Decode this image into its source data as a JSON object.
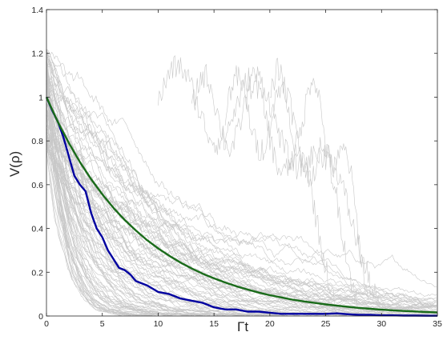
{
  "chart_data": {
    "type": "line",
    "title": "",
    "xlabel": "Γt",
    "ylabel": "V(ρ)",
    "xlim": [
      0,
      35
    ],
    "ylim": [
      0,
      1.4
    ],
    "x_ticks": [
      0,
      5,
      10,
      15,
      20,
      25,
      30,
      35
    ],
    "x_tick_labels": [
      "0",
      "5",
      "10",
      "15",
      "20",
      "25",
      "30",
      "35"
    ],
    "y_ticks": [
      0,
      0.2,
      0.4,
      0.6,
      0.8,
      1,
      1.2,
      1.4
    ],
    "y_tick_labels": [
      "0",
      "0.2",
      "0.4",
      "0.6",
      "0.8",
      "1",
      "1.2",
      "1.4"
    ],
    "grid": false,
    "series": [
      {
        "color": "#0000a0",
        "x": [
          0,
          0.5,
          1,
          1.5,
          2,
          2.5,
          3,
          3.5,
          4,
          4.5,
          5,
          5.5,
          6,
          6.5,
          7,
          7.5,
          8,
          9,
          10,
          11,
          12,
          13,
          14,
          15,
          16,
          17,
          18,
          19,
          20,
          21,
          22,
          23,
          24,
          25,
          26,
          27,
          28,
          29,
          30,
          31,
          32,
          33,
          34,
          35
        ],
        "y": [
          1.0,
          0.94,
          0.89,
          0.82,
          0.73,
          0.64,
          0.6,
          0.57,
          0.47,
          0.4,
          0.36,
          0.3,
          0.26,
          0.22,
          0.21,
          0.19,
          0.16,
          0.14,
          0.11,
          0.1,
          0.08,
          0.07,
          0.06,
          0.04,
          0.03,
          0.03,
          0.02,
          0.02,
          0.015,
          0.01,
          0.01,
          0.01,
          0.01,
          0.01,
          0.012,
          0.008,
          0.005,
          0.005,
          0.003,
          0.003,
          0.002,
          0.002,
          0.001,
          0.001
        ]
      },
      {
        "color": "#1a6b1a",
        "x": [
          0,
          1,
          2,
          3,
          4,
          5,
          6,
          7,
          8,
          9,
          10,
          11,
          12,
          13,
          14,
          15,
          16,
          17,
          18,
          19,
          20,
          21,
          22,
          23,
          24,
          25,
          26,
          27,
          28,
          29,
          30,
          31,
          32,
          33,
          34,
          35
        ],
        "y": [
          1.0,
          0.889,
          0.791,
          0.703,
          0.625,
          0.556,
          0.494,
          0.439,
          0.391,
          0.347,
          0.309,
          0.275,
          0.244,
          0.217,
          0.193,
          0.172,
          0.153,
          0.136,
          0.121,
          0.107,
          0.095,
          0.085,
          0.075,
          0.067,
          0.06,
          0.053,
          0.047,
          0.042,
          0.037,
          0.033,
          0.029,
          0.026,
          0.023,
          0.021,
          0.018,
          0.016
        ]
      }
    ],
    "colors": {
      "trajectories": "#c8c8c8",
      "average": "#0000a0",
      "exponential": "#1a6b1a",
      "axes": "#262626"
    }
  }
}
